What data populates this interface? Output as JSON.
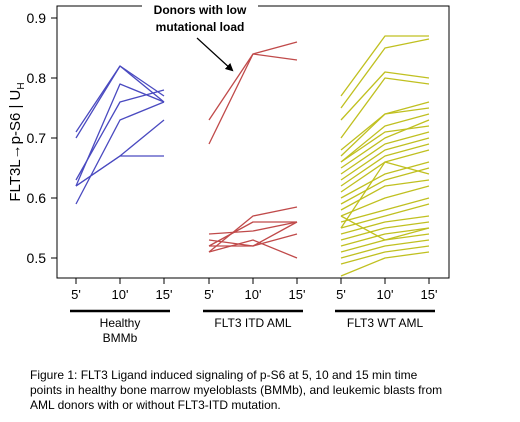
{
  "chart_data": {
    "type": "line",
    "ylabel": "FLT3L→p-S6 | U",
    "ylabel_subscript": "H",
    "yticks": [
      0.5,
      0.6,
      0.7,
      0.8,
      0.9
    ],
    "ylim": [
      0.47,
      0.905
    ],
    "x_tick_labels": [
      "5'",
      "10'",
      "15'"
    ],
    "grid": false,
    "annotation": {
      "line1": "Donors with low",
      "line2": "mutational load"
    },
    "groups": [
      {
        "label_lines": [
          "Healthy",
          "BMMb"
        ],
        "color": "#4a4ac0",
        "series": [
          [
            0.71,
            0.82,
            0.77
          ],
          [
            0.7,
            0.82,
            0.76
          ],
          [
            0.62,
            0.79,
            0.76
          ],
          [
            0.63,
            0.76,
            0.78
          ],
          [
            0.59,
            0.73,
            0.76
          ],
          [
            0.62,
            0.67,
            0.73
          ],
          [
            0.62,
            0.67,
            0.67
          ]
        ]
      },
      {
        "label_lines": [
          "FLT3 ITD AML"
        ],
        "color": "#c04a4a",
        "series": [
          [
            0.73,
            0.84,
            0.86
          ],
          [
            0.69,
            0.84,
            0.83
          ],
          [
            0.51,
            0.57,
            0.585
          ],
          [
            0.52,
            0.56,
            0.56
          ],
          [
            0.54,
            0.545,
            0.56
          ],
          [
            0.53,
            0.52,
            0.54
          ],
          [
            0.51,
            0.53,
            0.5
          ],
          [
            0.52,
            0.52,
            0.56
          ]
        ]
      },
      {
        "label_lines": [
          "FLT3 WT AML"
        ],
        "color": "#c0c020",
        "series": [
          [
            0.77,
            0.87,
            0.87
          ],
          [
            0.75,
            0.85,
            0.865
          ],
          [
            0.73,
            0.81,
            0.8
          ],
          [
            0.7,
            0.8,
            0.79
          ],
          [
            0.68,
            0.74,
            0.75
          ],
          [
            0.67,
            0.74,
            0.76
          ],
          [
            0.66,
            0.72,
            0.74
          ],
          [
            0.66,
            0.71,
            0.72
          ],
          [
            0.65,
            0.7,
            0.73
          ],
          [
            0.64,
            0.69,
            0.71
          ],
          [
            0.63,
            0.68,
            0.7
          ],
          [
            0.62,
            0.67,
            0.69
          ],
          [
            0.61,
            0.66,
            0.68
          ],
          [
            0.6,
            0.64,
            0.66
          ],
          [
            0.59,
            0.63,
            0.65
          ],
          [
            0.58,
            0.62,
            0.63
          ],
          [
            0.57,
            0.6,
            0.62
          ],
          [
            0.56,
            0.58,
            0.6
          ],
          [
            0.55,
            0.57,
            0.59
          ],
          [
            0.54,
            0.56,
            0.57
          ],
          [
            0.53,
            0.55,
            0.56
          ],
          [
            0.52,
            0.54,
            0.55
          ],
          [
            0.51,
            0.53,
            0.54
          ],
          [
            0.5,
            0.52,
            0.53
          ],
          [
            0.49,
            0.51,
            0.52
          ],
          [
            0.47,
            0.5,
            0.51
          ],
          [
            0.55,
            0.66,
            0.64
          ],
          [
            0.57,
            0.53,
            0.55
          ]
        ]
      }
    ]
  },
  "caption": "Figure 1: FLT3 Ligand induced signaling of p-S6 at 5, 10 and 15 min time\npoints in healthy bone marrow myeloblasts (BMMb), and leukemic blasts from\nAML donors with or without FLT3-ITD mutation."
}
